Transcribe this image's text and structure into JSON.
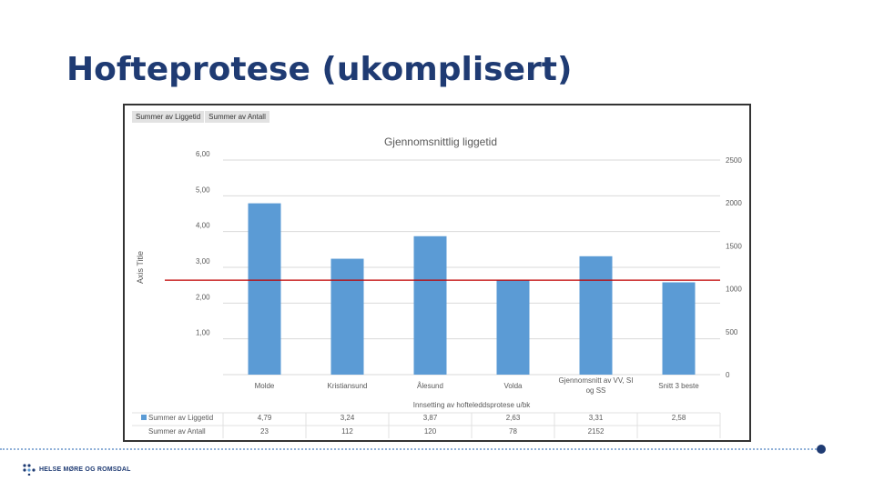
{
  "slide": {
    "title": "Hofteprotese (ukomplisert)",
    "logo_text": "HELSE MØRE OG ROMSDAL"
  },
  "chart_tabs": [
    "Summer av Liggetid",
    "Summer av Antall"
  ],
  "colors": {
    "bar": "#5b9bd5",
    "ref_line": "#c00000",
    "title": "#1f3b73"
  },
  "chart_data": {
    "type": "bar",
    "title": "Gjennomsnittlig liggetid",
    "xlabel": "Innsetting av hofteleddsprotese u/bk",
    "ylabel": "Axis Title",
    "categories": [
      "Molde",
      "Kristiansund",
      "Ålesund",
      "Volda",
      "Gjennomsnitt av VV, SI og SS",
      "Snitt 3 beste"
    ],
    "y_ticks": [
      "6,00",
      "5,00",
      "4,00",
      "3,00",
      "2,00",
      "1,00"
    ],
    "y2_ticks": [
      "2500",
      "2000",
      "1500",
      "1000",
      "500",
      "0"
    ],
    "ylim": [
      0,
      6
    ],
    "y2lim": [
      0,
      2500
    ],
    "reference_line_y2": 1100,
    "series": [
      {
        "name": "Summer av Liggetid",
        "values": [
          4.79,
          3.24,
          3.87,
          2.63,
          3.31,
          2.58
        ],
        "labels": [
          "4,79",
          "3,24",
          "3,87",
          "2,63",
          "3,31",
          "2,58"
        ]
      },
      {
        "name": "Summer av Antall",
        "labels": [
          "23",
          "112",
          "120",
          "78",
          "2152",
          ""
        ]
      }
    ]
  }
}
